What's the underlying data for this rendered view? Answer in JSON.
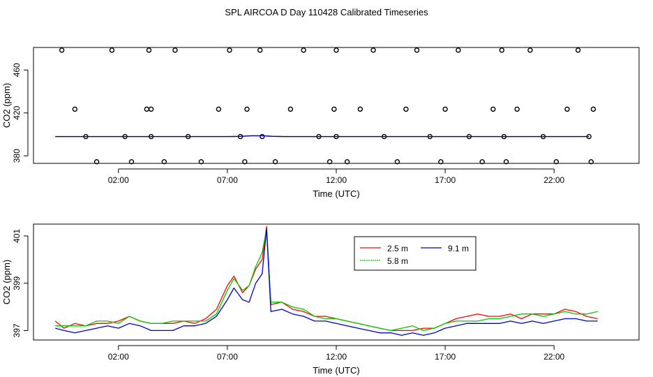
{
  "title": "SPL AIRCOA D  Day 110428  Calibrated Timeseries",
  "chart_data": [
    {
      "type": "scatter+line",
      "title": "SPL AIRCOA D  Day 110428  Calibrated Timeseries",
      "xlabel": "Time (UTC)",
      "ylabel": "CO2 (ppm)",
      "xlim": [
        -1.9,
        25.9
      ],
      "ylim": [
        373,
        481
      ],
      "xticks": [
        2,
        7,
        12,
        17,
        22
      ],
      "xtick_labels": [
        "02:00",
        "07:00",
        "12:00",
        "17:00",
        "22:00"
      ],
      "yticks": [
        380,
        420,
        460
      ],
      "yticks_labels": [
        "380",
        "420",
        "460"
      ],
      "points": {
        "x": [
          -0.6,
          0.0,
          0.5,
          1.0,
          1.7,
          2.3,
          2.6,
          3.3,
          3.4,
          3.5,
          3.5,
          4.1,
          4.6,
          5.2,
          5.8,
          6.6,
          7.1,
          7.6,
          7.8,
          7.9,
          8.5,
          8.6,
          9.2,
          9.9,
          10.5,
          11.2,
          11.7,
          11.9,
          12.0,
          12.0,
          12.5,
          13.1,
          13.7,
          14.2,
          14.8,
          15.2,
          15.7,
          16.3,
          16.8,
          17.0,
          17.6,
          18.1,
          18.7,
          19.2,
          19.6,
          19.7,
          19.8,
          20.3,
          20.9,
          21.5,
          22.1,
          22.6,
          23.1,
          23.6,
          23.7,
          23.8
        ]
      },
      "series": [
        {
          "name": "2.5 m",
          "color": "#ff0000",
          "values_note": "flat near 398 ppm"
        },
        {
          "name": "5.8 m",
          "color": "#00cc00",
          "values_note": "flat near 398 ppm"
        },
        {
          "name": "9.1 m",
          "color": "#0000cc",
          "values_note": "flat near 398 ppm"
        }
      ]
    },
    {
      "type": "line",
      "title": "",
      "xlabel": "Time (UTC)",
      "ylabel": "CO2 (ppm)",
      "xlim": [
        -1.9,
        25.9
      ],
      "ylim": [
        396.6,
        401.5
      ],
      "xticks": [
        2,
        7,
        12,
        17,
        22
      ],
      "xtick_labels": [
        "02:00",
        "07:00",
        "12:00",
        "17:00",
        "22:00"
      ],
      "yticks": [
        397,
        399,
        401
      ],
      "ytick_labels": [
        "397",
        "399",
        "401"
      ],
      "legend": {
        "position": "top-center",
        "entries": [
          "2.5 m",
          "9.1 m",
          "5.8 m"
        ]
      },
      "x": [
        -0.9,
        -0.5,
        0.0,
        0.5,
        1.0,
        1.5,
        2.0,
        2.5,
        3.0,
        3.5,
        4.0,
        4.5,
        5.0,
        5.5,
        6.0,
        6.5,
        7.0,
        7.3,
        7.7,
        8.0,
        8.3,
        8.6,
        8.8,
        9.0,
        9.5,
        10.0,
        10.5,
        11.0,
        11.5,
        12.0,
        12.5,
        13.0,
        13.5,
        14.0,
        14.5,
        15.0,
        15.5,
        16.0,
        16.5,
        17.0,
        17.5,
        18.0,
        18.5,
        19.0,
        19.5,
        20.0,
        20.5,
        21.0,
        21.5,
        22.0,
        22.5,
        23.0,
        23.5,
        24.0
      ],
      "series": [
        {
          "name": "2.5 m",
          "color": "#ff0000",
          "values": [
            397.4,
            397.1,
            397.3,
            397.2,
            397.3,
            397.3,
            397.4,
            397.6,
            397.4,
            397.3,
            397.3,
            397.3,
            397.4,
            397.3,
            397.5,
            397.9,
            398.9,
            399.3,
            398.6,
            398.9,
            399.6,
            400.0,
            401.4,
            398.1,
            398.2,
            397.9,
            397.8,
            397.6,
            397.6,
            397.5,
            397.4,
            397.3,
            397.2,
            397.1,
            397.0,
            397.0,
            397.0,
            397.1,
            397.1,
            397.3,
            397.5,
            397.6,
            397.7,
            397.6,
            397.6,
            397.7,
            397.5,
            397.7,
            397.7,
            397.7,
            397.9,
            397.8,
            397.6,
            397.5
          ]
        },
        {
          "name": "5.8 m",
          "color": "#00cc00",
          "values": [
            397.2,
            397.2,
            397.2,
            397.2,
            397.4,
            397.4,
            397.3,
            397.6,
            397.4,
            397.3,
            397.3,
            397.4,
            397.4,
            397.4,
            397.4,
            397.7,
            398.7,
            399.2,
            398.7,
            398.9,
            399.7,
            400.3,
            401.3,
            398.2,
            398.2,
            398.0,
            397.9,
            397.6,
            397.5,
            397.5,
            397.4,
            397.3,
            397.2,
            397.1,
            397.0,
            397.1,
            397.2,
            397.0,
            397.1,
            397.3,
            397.4,
            397.4,
            397.4,
            397.5,
            397.5,
            397.6,
            397.7,
            397.7,
            397.6,
            397.7,
            397.8,
            397.7,
            397.7,
            397.8
          ]
        },
        {
          "name": "9.1 m",
          "color": "#0000cc",
          "values": [
            397.1,
            397.0,
            396.9,
            397.0,
            397.1,
            397.2,
            397.1,
            397.3,
            397.2,
            397.0,
            397.0,
            397.0,
            397.2,
            397.2,
            397.3,
            397.6,
            398.3,
            398.8,
            398.3,
            398.2,
            399.0,
            399.4,
            401.3,
            397.8,
            397.9,
            397.7,
            397.6,
            397.4,
            397.4,
            397.3,
            397.2,
            397.1,
            397.0,
            396.9,
            396.9,
            396.8,
            396.9,
            396.8,
            396.9,
            397.1,
            397.2,
            397.3,
            397.3,
            397.3,
            397.3,
            397.4,
            397.3,
            397.4,
            397.3,
            397.4,
            397.5,
            397.5,
            397.4,
            397.4
          ]
        }
      ]
    }
  ]
}
